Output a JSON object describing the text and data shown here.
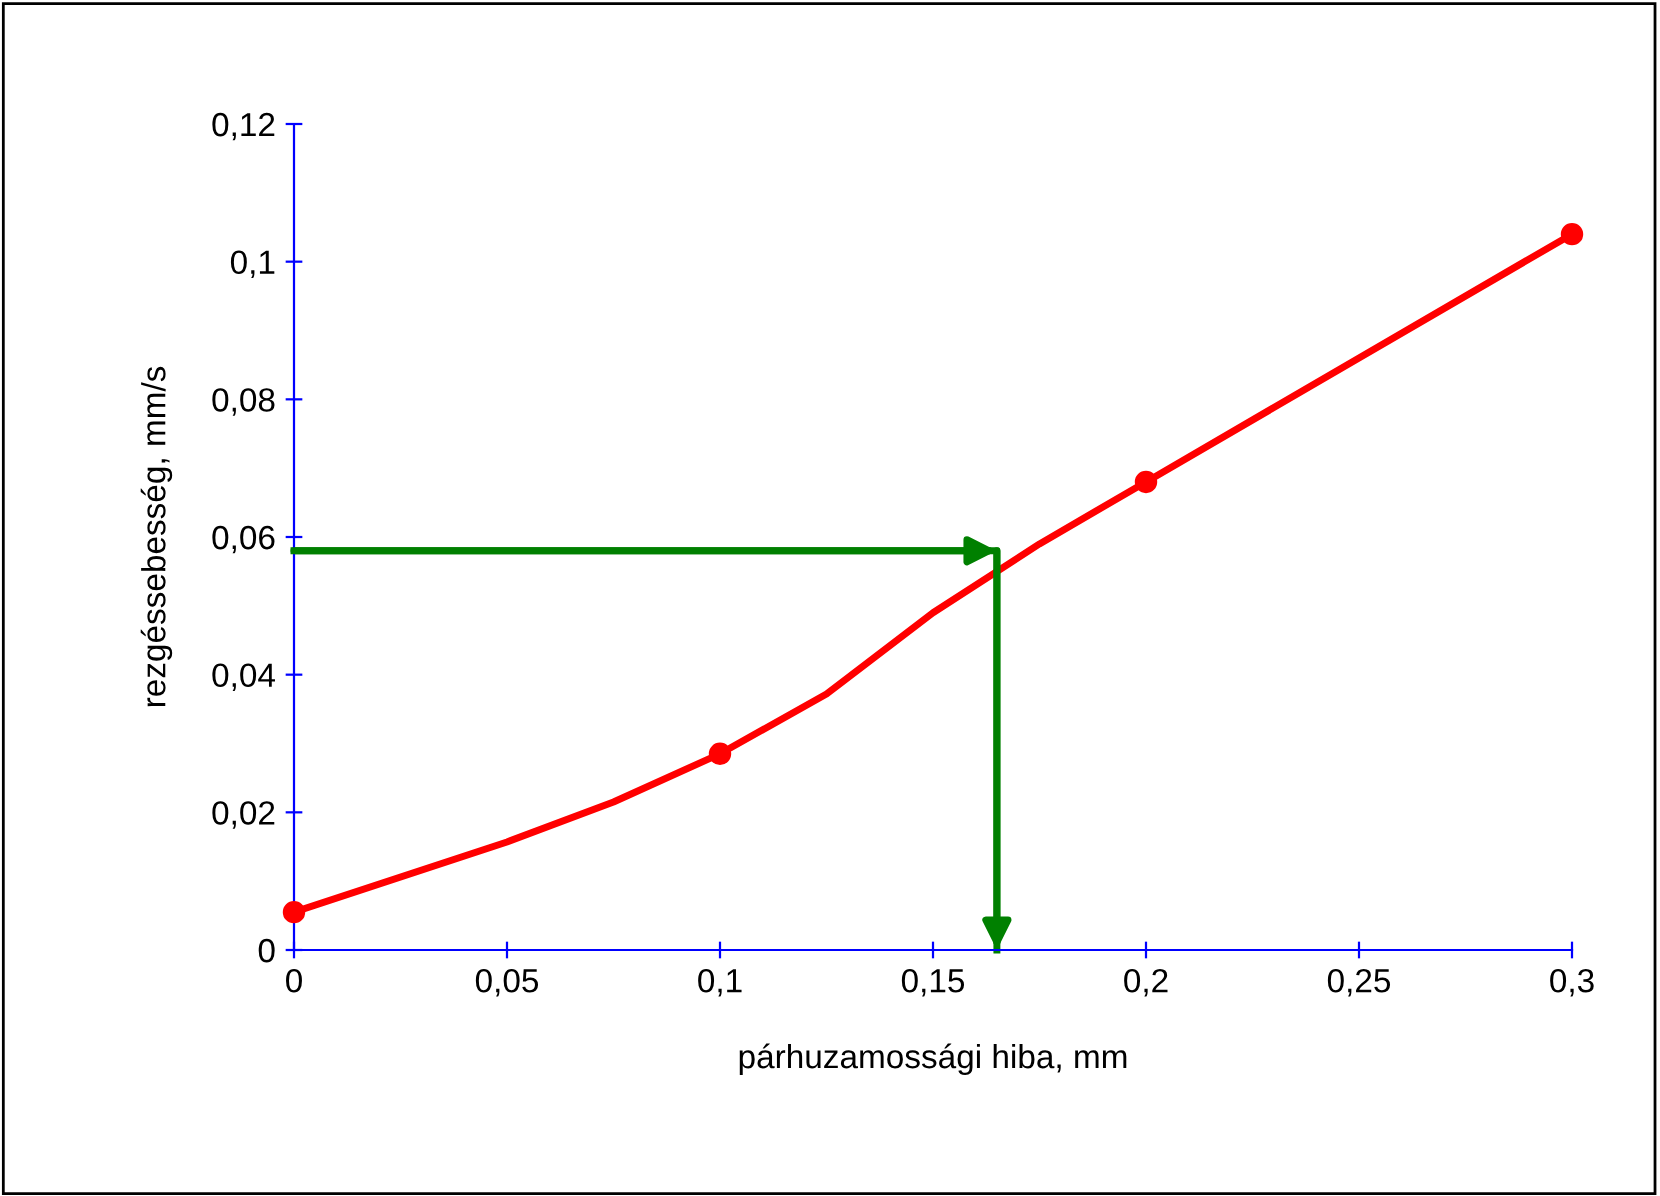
{
  "chart_data": {
    "type": "line",
    "xlabel": "párhuzamossági hiba, mm",
    "ylabel": "rezgéssebesség, mm/s",
    "x": [
      0,
      0.05,
      0.075,
      0.1,
      0.125,
      0.15,
      0.175,
      0.2,
      0.25,
      0.3
    ],
    "series": [
      {
        "color": "#ff0000",
        "marker": "none",
        "values": [
          0.0055,
          0.0157,
          0.0215,
          0.0285,
          0.0372,
          0.049,
          0.059,
          0.068,
          0.086,
          0.104
        ]
      },
      {
        "type": "scatter",
        "color": "#ff0000",
        "marker": "circle",
        "x": [
          0,
          0.1,
          0.2,
          0.3
        ],
        "values": [
          0.0055,
          0.0285,
          0.068,
          0.104
        ]
      },
      {
        "color": "#008000",
        "marker": "none",
        "x": [
          0,
          0.165,
          0.165
        ],
        "values": [
          0.058,
          0.058,
          0
        ]
      }
    ],
    "xlim": [
      0,
      0.3
    ],
    "ylim": [
      0,
      0.12
    ],
    "xticks": [
      0,
      {
        "value": 0.05,
        "label": "0,05"
      },
      {
        "value": 0.1,
        "label": "0,1"
      },
      {
        "value": 0.15,
        "label": "0,15"
      },
      {
        "value": 0.2,
        "label": "0,2"
      },
      {
        "value": 0.25,
        "label": "0,25"
      },
      {
        "value": 0.3,
        "label": "0,3"
      }
    ],
    "yticks": [
      0,
      {
        "value": 0.02,
        "label": "0,02"
      },
      {
        "value": 0.04,
        "label": "0,04"
      },
      {
        "value": 0.06,
        "label": "0,06"
      },
      {
        "value": 0.08,
        "label": "0,08"
      },
      {
        "value": 0.1,
        "label": "0,1"
      },
      {
        "value": 0.12,
        "label": "0,12"
      }
    ],
    "grid": false,
    "legend": false
  }
}
